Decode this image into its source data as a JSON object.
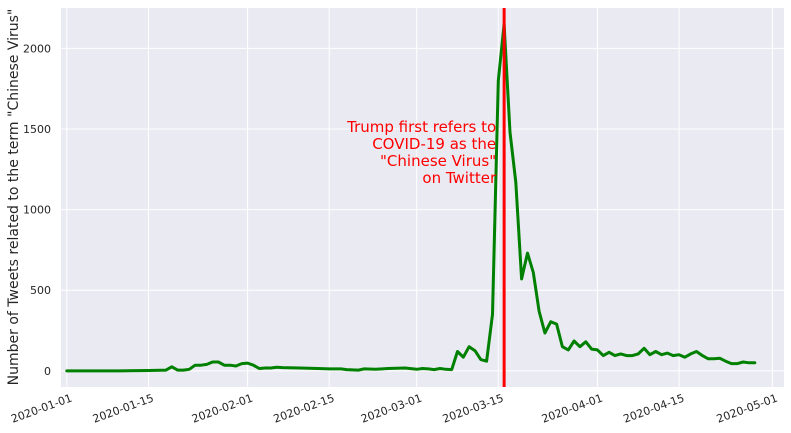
{
  "chart_data": {
    "type": "line",
    "title": "",
    "xlabel": "",
    "ylabel": "Number of Tweets related to the term \"Chinese Virus\"",
    "xlim": [
      "2019-12-31",
      "2020-05-03"
    ],
    "ylim": [
      -100,
      2250
    ],
    "grid": true,
    "background": "#eaeaf2",
    "x_ticks": [
      "2020-01-01",
      "2020-01-15",
      "2020-02-01",
      "2020-02-15",
      "2020-03-01",
      "2020-03-15",
      "2020-04-01",
      "2020-04-15",
      "2020-05-01"
    ],
    "y_ticks": [
      0,
      500,
      1000,
      1500,
      2000
    ],
    "series": [
      {
        "color": "#008000",
        "points": [
          [
            "2020-01-01",
            0
          ],
          [
            "2020-01-05",
            0
          ],
          [
            "2020-01-10",
            0
          ],
          [
            "2020-01-15",
            2
          ],
          [
            "2020-01-18",
            5
          ],
          [
            "2020-01-19",
            25
          ],
          [
            "2020-01-20",
            5
          ],
          [
            "2020-01-21",
            5
          ],
          [
            "2020-01-22",
            10
          ],
          [
            "2020-01-23",
            35
          ],
          [
            "2020-01-24",
            35
          ],
          [
            "2020-01-25",
            40
          ],
          [
            "2020-01-26",
            55
          ],
          [
            "2020-01-27",
            55
          ],
          [
            "2020-01-28",
            35
          ],
          [
            "2020-01-29",
            35
          ],
          [
            "2020-01-30",
            30
          ],
          [
            "2020-01-31",
            45
          ],
          [
            "2020-02-01",
            48
          ],
          [
            "2020-02-02",
            35
          ],
          [
            "2020-02-03",
            15
          ],
          [
            "2020-02-04",
            18
          ],
          [
            "2020-02-05",
            18
          ],
          [
            "2020-02-06",
            22
          ],
          [
            "2020-02-07",
            20
          ],
          [
            "2020-02-10",
            18
          ],
          [
            "2020-02-13",
            15
          ],
          [
            "2020-02-15",
            12
          ],
          [
            "2020-02-17",
            12
          ],
          [
            "2020-02-18",
            8
          ],
          [
            "2020-02-20",
            5
          ],
          [
            "2020-02-21",
            12
          ],
          [
            "2020-02-23",
            10
          ],
          [
            "2020-02-25",
            15
          ],
          [
            "2020-02-28",
            18
          ],
          [
            "2020-03-01",
            10
          ],
          [
            "2020-03-02",
            15
          ],
          [
            "2020-03-03",
            12
          ],
          [
            "2020-03-04",
            8
          ],
          [
            "2020-03-05",
            15
          ],
          [
            "2020-03-06",
            10
          ],
          [
            "2020-03-07",
            8
          ],
          [
            "2020-03-08",
            120
          ],
          [
            "2020-03-09",
            85
          ],
          [
            "2020-03-10",
            150
          ],
          [
            "2020-03-11",
            125
          ],
          [
            "2020-03-12",
            70
          ],
          [
            "2020-03-13",
            60
          ],
          [
            "2020-03-14",
            350
          ],
          [
            "2020-03-15",
            1800
          ],
          [
            "2020-03-16",
            2150
          ],
          [
            "2020-03-17",
            1480
          ],
          [
            "2020-03-18",
            1170
          ],
          [
            "2020-03-19",
            570
          ],
          [
            "2020-03-20",
            730
          ],
          [
            "2020-03-21",
            610
          ],
          [
            "2020-03-22",
            370
          ],
          [
            "2020-03-23",
            235
          ],
          [
            "2020-03-24",
            305
          ],
          [
            "2020-03-25",
            290
          ],
          [
            "2020-03-26",
            150
          ],
          [
            "2020-03-27",
            130
          ],
          [
            "2020-03-28",
            185
          ],
          [
            "2020-03-29",
            150
          ],
          [
            "2020-03-30",
            180
          ],
          [
            "2020-03-31",
            135
          ],
          [
            "2020-04-01",
            130
          ],
          [
            "2020-04-02",
            95
          ],
          [
            "2020-04-03",
            115
          ],
          [
            "2020-04-04",
            95
          ],
          [
            "2020-04-05",
            105
          ],
          [
            "2020-04-06",
            95
          ],
          [
            "2020-04-07",
            95
          ],
          [
            "2020-04-08",
            105
          ],
          [
            "2020-04-09",
            140
          ],
          [
            "2020-04-10",
            100
          ],
          [
            "2020-04-11",
            120
          ],
          [
            "2020-04-12",
            100
          ],
          [
            "2020-04-13",
            110
          ],
          [
            "2020-04-14",
            95
          ],
          [
            "2020-04-15",
            100
          ],
          [
            "2020-04-16",
            85
          ],
          [
            "2020-04-17",
            105
          ],
          [
            "2020-04-18",
            120
          ],
          [
            "2020-04-19",
            95
          ],
          [
            "2020-04-20",
            75
          ],
          [
            "2020-04-21",
            75
          ],
          [
            "2020-04-22",
            78
          ],
          [
            "2020-04-23",
            60
          ],
          [
            "2020-04-24",
            45
          ],
          [
            "2020-04-25",
            45
          ],
          [
            "2020-04-26",
            55
          ],
          [
            "2020-04-27",
            50
          ],
          [
            "2020-04-28",
            50
          ]
        ]
      }
    ],
    "vline": {
      "x": "2020-03-16",
      "color": "#ff0000"
    },
    "annotation": {
      "lines": [
        "Trump first refers to",
        "COVID-19 as the",
        "\"Chinese Virus\"",
        "on Twitter"
      ],
      "color": "#ff0000",
      "anchor_y": 1400
    }
  }
}
